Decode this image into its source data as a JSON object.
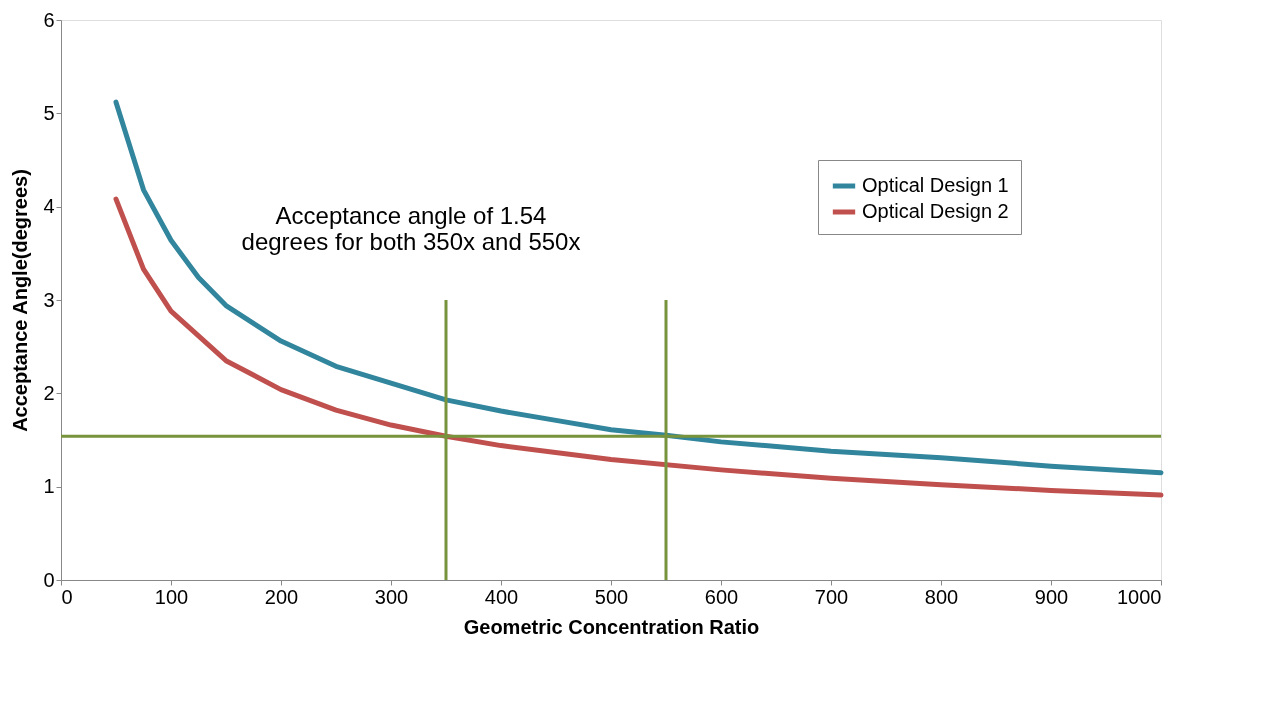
{
  "chart_data": {
    "type": "line",
    "xlabel": "Geometric Concentration Ratio",
    "ylabel": "Acceptance Angle(degrees)",
    "xlim": [
      0,
      1000
    ],
    "xticks": [
      0,
      100,
      200,
      300,
      400,
      500,
      600,
      700,
      800,
      900,
      1000
    ],
    "ylim": [
      0,
      6
    ],
    "yticks": [
      0,
      1,
      2,
      3,
      4,
      5,
      6
    ],
    "grid": false,
    "legend": "top right",
    "line_style": "solid",
    "marker": "none",
    "series": [
      {
        "name": "Optical Design 1",
        "color": "#31859c",
        "x": [
          50,
          75,
          100,
          125,
          150,
          200,
          250,
          300,
          350,
          400,
          450,
          500,
          550,
          600,
          700,
          800,
          900,
          1000
        ],
        "values": [
          5.12,
          4.18,
          3.64,
          3.24,
          2.94,
          2.56,
          2.29,
          2.11,
          1.93,
          1.81,
          1.71,
          1.61,
          1.55,
          1.48,
          1.38,
          1.31,
          1.22,
          1.15
        ]
      },
      {
        "name": "Optical Design 2",
        "color": "#c0504d",
        "x": [
          50,
          75,
          100,
          150,
          200,
          250,
          300,
          350,
          400,
          500,
          600,
          700,
          800,
          900,
          1000
        ],
        "values": [
          4.08,
          3.33,
          2.88,
          2.35,
          2.04,
          1.82,
          1.66,
          1.54,
          1.44,
          1.29,
          1.18,
          1.09,
          1.02,
          0.96,
          0.91
        ]
      }
    ],
    "ref_lines": [
      {
        "axis": "x",
        "value": 350,
        "color": "#77933c"
      },
      {
        "axis": "x",
        "value": 550,
        "color": "#77933c"
      },
      {
        "axis": "y",
        "value": 1.54,
        "color": "#77933c"
      }
    ],
    "annotations": [
      "Acceptance angle of 1.54\ndegrees for both 350x and 550x"
    ]
  }
}
